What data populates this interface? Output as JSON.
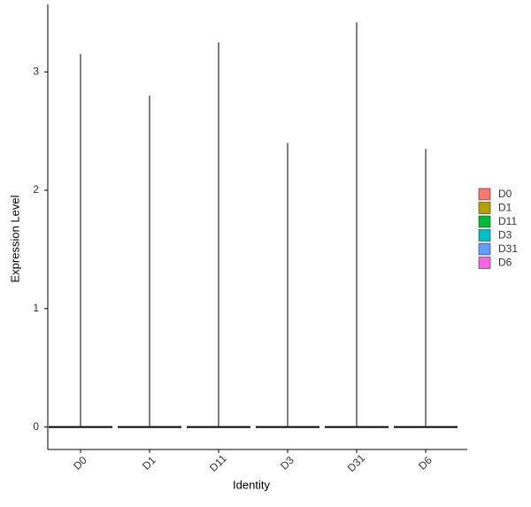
{
  "chart_data": {
    "type": "violin",
    "x_label": "Identity",
    "y_label": "Expression Level",
    "categories": [
      "D0",
      "D1",
      "D11",
      "D3",
      "D31",
      "D6"
    ],
    "series": [
      {
        "name": "D0",
        "color": "#F8766D",
        "values": [
          0,
          3.15
        ]
      },
      {
        "name": "D1",
        "color": "#B79F00",
        "values": [
          0,
          2.8
        ]
      },
      {
        "name": "D11",
        "color": "#00BA38",
        "values": [
          0,
          3.25
        ]
      },
      {
        "name": "D3",
        "color": "#00BFC4",
        "values": [
          0,
          2.4
        ]
      },
      {
        "name": "D31",
        "color": "#619CFF",
        "values": [
          0,
          3.42
        ]
      },
      {
        "name": "D6",
        "color": "#F564E3",
        "values": [
          0,
          2.35
        ]
      }
    ],
    "ylim": [
      -0.19,
      3.57
    ],
    "yticks": [
      0,
      1,
      2,
      3
    ],
    "legend": "right"
  }
}
